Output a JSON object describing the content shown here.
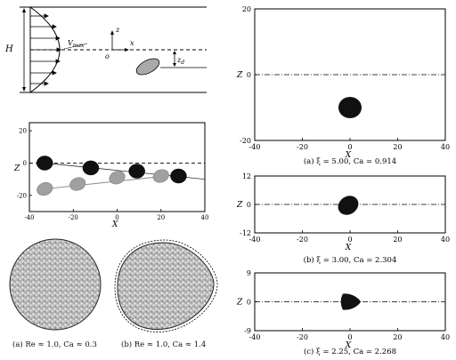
{
  "schematic": {
    "h_label": "H",
    "vmax_label": "V",
    "vmax_sub": "max",
    "z_label": "z",
    "x_label": "x",
    "o_label": "o",
    "zd_label": "z",
    "zd_sub": "d"
  },
  "trajectory": {
    "ylabel": "Z",
    "xlabel": "X",
    "xticks": [
      "-40",
      "-20",
      "0",
      "20",
      "40"
    ],
    "yticks": [
      "20",
      "0",
      "-20"
    ],
    "xlim": [
      -40,
      40
    ],
    "ylim": [
      -30,
      25
    ],
    "black_drops": [
      {
        "x": -33,
        "z": 0
      },
      {
        "x": -12,
        "z": -3
      },
      {
        "x": 9,
        "z": -5
      },
      {
        "x": 28,
        "z": -8
      }
    ],
    "gray_drops": [
      {
        "x": -33,
        "z": -16
      },
      {
        "x": -18,
        "z": -13
      },
      {
        "x": 0,
        "z": -9
      },
      {
        "x": 20,
        "z": -8
      }
    ]
  },
  "shapes": {
    "a_caption": "(a) Re ≈ 1.0, Ca ≈ 0.3",
    "b_caption": "(b) Re ≈ 1.0, Ca ≈ 1.4"
  },
  "panels": [
    {
      "ylabel": "Z",
      "xlabel": "X",
      "yticks": [
        "20",
        "0",
        "-20"
      ],
      "xticks": [
        "-40",
        "-20",
        "0",
        "20",
        "40"
      ],
      "caption": "(a) ξ = 5.00, Ca = 0.914",
      "drop_z": -10
    },
    {
      "ylabel": "Z",
      "xlabel": "X",
      "yticks": [
        "12",
        "0",
        "-12"
      ],
      "xticks": [
        "-40",
        "-20",
        "0",
        "20",
        "40"
      ],
      "caption": "(b) ξ = 3.00, Ca = 2.304",
      "drop_z": 0
    },
    {
      "ylabel": "Z",
      "xlabel": "X",
      "yticks": [
        "9",
        "0",
        "-9"
      ],
      "xticks": [
        "-40",
        "-20",
        "0",
        "20",
        "40"
      ],
      "caption": "(c) ξ = 2.25, Ca = 2.268",
      "drop_z": 0
    }
  ]
}
